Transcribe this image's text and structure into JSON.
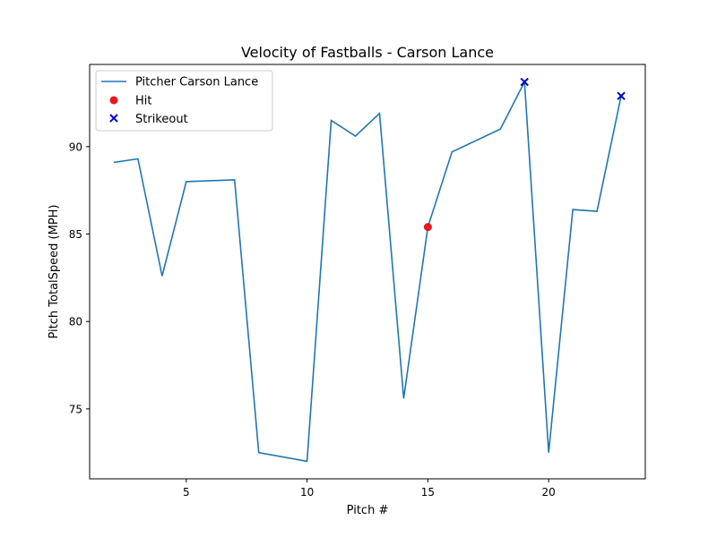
{
  "chart_data": {
    "type": "line",
    "title": "Velocity of Fastballs - Carson Lance",
    "xlabel": "Pitch #",
    "ylabel": "Pitch TotalSpeed (MPH)",
    "xlim": [
      1.0,
      24.0
    ],
    "ylim": [
      71.0,
      94.7
    ],
    "xticks": [
      5,
      10,
      15,
      20
    ],
    "yticks": [
      75,
      80,
      85,
      90
    ],
    "grid": false,
    "legend_position": "top-left",
    "series": [
      {
        "name": "Pitcher Carson Lance",
        "kind": "line",
        "color": "#1f77b4",
        "x": [
          2,
          3,
          4,
          5,
          7,
          8,
          10,
          11,
          12,
          13,
          14,
          15,
          16,
          18,
          19,
          20,
          21,
          22,
          23
        ],
        "y": [
          89.1,
          89.3,
          82.6,
          88.0,
          88.1,
          72.5,
          72.0,
          91.5,
          90.6,
          91.9,
          75.6,
          85.4,
          89.7,
          91.0,
          93.7,
          72.5,
          86.4,
          86.3,
          92.9
        ]
      },
      {
        "name": "Hit",
        "kind": "scatter",
        "marker": "circle",
        "color": "#e41a1c",
        "x": [
          15
        ],
        "y": [
          85.4
        ]
      },
      {
        "name": "Strikeout",
        "kind": "scatter",
        "marker": "x",
        "color": "#0000cc",
        "x": [
          19,
          23
        ],
        "y": [
          93.7,
          92.9
        ]
      }
    ]
  }
}
